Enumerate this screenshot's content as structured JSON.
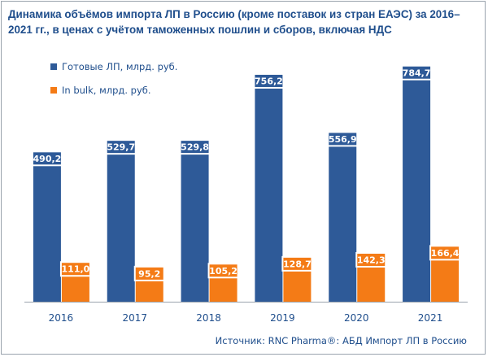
{
  "title": "Динамика объёмов импорта ЛП в Россию (кроме поставок из стран ЕАЭС) за 2016–2021 гг., в ценах с учётом таможенных пошлин и сборов, включая НДС",
  "source": "Источник: RNC Pharma®: АБД Импорт ЛП в Россию",
  "colors": {
    "series1": "#2e5a98",
    "series2": "#f47b16",
    "text": "#1f4e8c",
    "axis": "#9aa3ad"
  },
  "chart_data": {
    "type": "bar",
    "categories": [
      "2016",
      "2017",
      "2018",
      "2019",
      "2020",
      "2021"
    ],
    "series": [
      {
        "name": "Готовые ЛП, млрд. руб.",
        "values": [
          490.2,
          529.7,
          529.8,
          756.2,
          556.9,
          784.7
        ],
        "labels": [
          "490,2",
          "529,7",
          "529,8",
          "756,2",
          "556,9",
          "784,7"
        ]
      },
      {
        "name": "In bulk, млрд. руб.",
        "values": [
          111.0,
          95.2,
          105.2,
          128.7,
          142.3,
          166.4
        ],
        "labels": [
          "111,0",
          "95,2",
          "105,2",
          "128,7",
          "142,3",
          "166,4"
        ]
      }
    ],
    "xlabel": "",
    "ylabel": "",
    "ylim": [
      0,
      800
    ],
    "grid": false,
    "legend_position": "top-left"
  }
}
